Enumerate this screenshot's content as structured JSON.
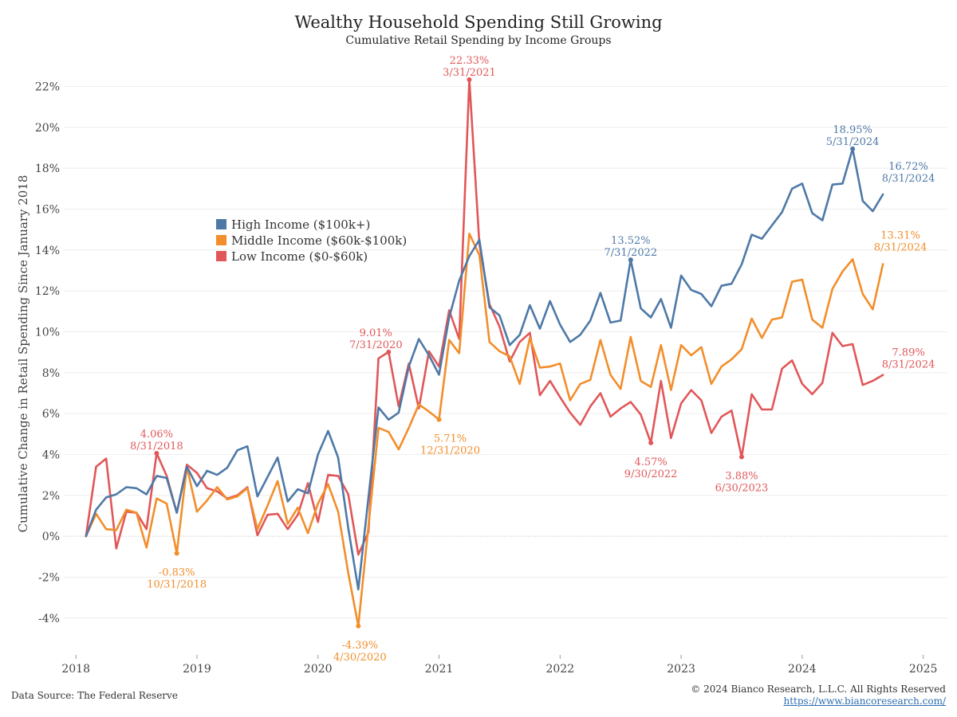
{
  "header": {
    "title": "Wealthy Household Spending Still Growing",
    "subtitle": "Cumulative Retail Spending by Income Groups"
  },
  "footer": {
    "source": "Data Source: The Federal Reserve",
    "copyright": "© 2024 Bianco Research, L.L.C. All Rights Reserved",
    "url": "https://www.biancoresearch.com/"
  },
  "colors": {
    "high": "#4e79a7",
    "middle": "#f28e2b",
    "low": "#e15759"
  },
  "chart_data": {
    "type": "line",
    "title": "Wealthy Household Spending Still Growing",
    "subtitle": "Cumulative Retail Spending by Income Groups",
    "ylabel": "Cumulative Change in Retail Spending Since January 2018",
    "xlabel": "",
    "x_axis": {
      "type": "date",
      "range": [
        2017.9,
        2025.2
      ],
      "ticks": [
        "2018",
        "2019",
        "2020",
        "2021",
        "2022",
        "2023",
        "2024",
        "2025"
      ]
    },
    "y_axis": {
      "range": [
        -5.8,
        23.5
      ],
      "ticks": [
        "22%",
        "20%",
        "18%",
        "16%",
        "14%",
        "12%",
        "10%",
        "8%",
        "6%",
        "4%",
        "2%",
        "0%",
        "-2%",
        "-4%"
      ]
    },
    "grid": "horizontal",
    "legend": "left-middle",
    "start_date": "2018-01-31",
    "frequency": "monthly",
    "series": [
      {
        "name": "High Income ($100k+)",
        "color": "#4e79a7",
        "values": [
          0.0,
          1.3,
          1.9,
          2.05,
          2.4,
          2.35,
          2.05,
          2.95,
          2.85,
          1.15,
          3.4,
          2.45,
          3.2,
          3.0,
          3.35,
          4.2,
          4.4,
          1.95,
          2.9,
          3.85,
          1.7,
          2.3,
          2.1,
          4.0,
          5.15,
          3.85,
          0.4,
          -2.6,
          1.9,
          6.3,
          5.7,
          6.05,
          8.3,
          9.65,
          8.85,
          7.9,
          10.7,
          12.5,
          13.7,
          14.5,
          11.2,
          10.8,
          9.35,
          9.85,
          11.3,
          10.15,
          11.5,
          10.35,
          9.5,
          9.85,
          10.55,
          11.9,
          10.45,
          10.55,
          13.52,
          11.15,
          10.7,
          11.6,
          10.2,
          12.75,
          12.05,
          11.85,
          11.25,
          12.25,
          12.35,
          13.3,
          14.75,
          14.55,
          15.2,
          15.85,
          17.0,
          17.25,
          15.8,
          15.45,
          17.2,
          17.25,
          18.95,
          16.4,
          15.9,
          16.72
        ]
      },
      {
        "name": "Middle Income ($60k-$100k)",
        "color": "#f28e2b",
        "values": [
          0.0,
          1.1,
          0.35,
          0.3,
          1.3,
          1.15,
          -0.55,
          1.85,
          1.6,
          -0.83,
          3.4,
          1.2,
          1.75,
          2.4,
          1.8,
          1.95,
          2.35,
          0.35,
          1.5,
          2.7,
          0.6,
          1.4,
          0.15,
          1.6,
          2.55,
          1.2,
          -1.8,
          -4.39,
          0.5,
          5.3,
          5.1,
          4.25,
          5.3,
          6.45,
          6.1,
          5.71,
          9.6,
          8.95,
          14.8,
          13.75,
          9.5,
          9.05,
          8.8,
          7.45,
          9.7,
          8.25,
          8.3,
          8.45,
          6.65,
          7.45,
          7.65,
          9.6,
          7.9,
          7.2,
          9.75,
          7.6,
          7.3,
          9.35,
          7.15,
          9.35,
          8.85,
          9.25,
          7.45,
          8.3,
          8.65,
          9.15,
          10.65,
          9.7,
          10.6,
          10.7,
          12.45,
          12.55,
          10.6,
          10.2,
          12.1,
          12.95,
          13.55,
          11.85,
          11.1,
          13.31
        ]
      },
      {
        "name": "Low Income ($0-$60k)",
        "color": "#e15759",
        "values": [
          0.0,
          3.4,
          3.8,
          -0.6,
          1.2,
          1.15,
          0.35,
          4.06,
          2.95,
          1.15,
          3.5,
          3.1,
          2.35,
          2.2,
          1.85,
          2.0,
          2.4,
          0.05,
          1.05,
          1.1,
          0.35,
          1.05,
          2.6,
          0.7,
          3.0,
          2.95,
          2.05,
          -0.9,
          0.2,
          8.7,
          9.01,
          6.35,
          8.45,
          6.25,
          9.05,
          8.3,
          11.05,
          9.65,
          22.33,
          14.3,
          11.35,
          10.25,
          8.55,
          9.5,
          9.95,
          6.9,
          7.6,
          6.8,
          6.05,
          5.45,
          6.35,
          7.0,
          5.85,
          6.25,
          6.57,
          5.95,
          4.57,
          7.6,
          4.8,
          6.5,
          7.15,
          6.65,
          5.05,
          5.85,
          6.15,
          3.88,
          6.95,
          6.2,
          6.2,
          8.2,
          8.6,
          7.45,
          6.95,
          7.5,
          9.95,
          9.3,
          9.4,
          7.4,
          7.6,
          7.89
        ]
      }
    ],
    "annotations": [
      {
        "series": "High Income ($100k+)",
        "date": "7/31/2022",
        "value": "13.52%"
      },
      {
        "series": "High Income ($100k+)",
        "date": "5/31/2024",
        "value": "18.95%"
      },
      {
        "series": "High Income ($100k+)",
        "date": "8/31/2024",
        "value": "16.72%"
      },
      {
        "series": "Middle Income ($60k-$100k)",
        "date": "10/31/2018",
        "value": "-0.83%"
      },
      {
        "series": "Middle Income ($60k-$100k)",
        "date": "4/30/2020",
        "value": "-4.39%"
      },
      {
        "series": "Middle Income ($60k-$100k)",
        "date": "12/31/2020",
        "value": "5.71%"
      },
      {
        "series": "Middle Income ($60k-$100k)",
        "date": "8/31/2024",
        "value": "13.31%"
      },
      {
        "series": "Low Income ($0-$60k)",
        "date": "8/31/2018",
        "value": "4.06%"
      },
      {
        "series": "Low Income ($0-$60k)",
        "date": "7/31/2020",
        "value": "9.01%"
      },
      {
        "series": "Low Income ($0-$60k)",
        "date": "3/31/2021",
        "value": "22.33%"
      },
      {
        "series": "Low Income ($0-$60k)",
        "date": "9/30/2022",
        "value": "4.57%"
      },
      {
        "series": "Low Income ($0-$60k)",
        "date": "6/30/2023",
        "value": "3.88%"
      },
      {
        "series": "Low Income ($0-$60k)",
        "date": "8/31/2024",
        "value": "7.89%"
      }
    ]
  }
}
